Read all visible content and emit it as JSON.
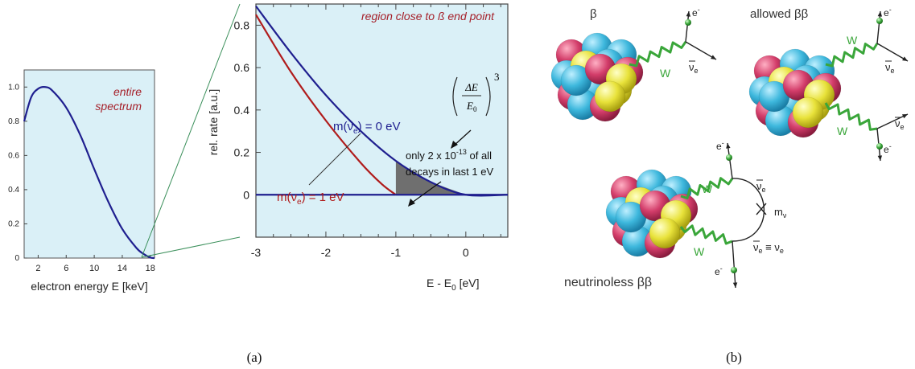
{
  "small_panel": {
    "title_line1": "entire",
    "title_line2": "spectrum",
    "xlabel": "electron energy E [keV]",
    "xticks": [
      "2",
      "6",
      "10",
      "14",
      "18"
    ],
    "yticks": [
      "1.0",
      "0.8",
      "0.6",
      "0.4",
      "0.2",
      "0"
    ]
  },
  "main_panel": {
    "title": "region close to ß end point",
    "ylabel": "rel. rate [a.u.]",
    "xlabel_main": "E - E",
    "xlabel_sub": "0",
    "xlabel_unit": " [eV]",
    "xticks": [
      "-3",
      "-2",
      "-1",
      "0"
    ],
    "yticks": [
      "0.8",
      "0.6",
      "0.4",
      "0.2",
      "0"
    ],
    "label_m0": {
      "pre": "m(ν",
      "sub": "e",
      "post": ") = 0 eV"
    },
    "label_m1": {
      "pre": "m(ν",
      "sub": "e",
      "post": ") = 1 eV"
    },
    "formula_num": "ΔE",
    "formula_den": "E",
    "formula_den_sub": "0",
    "formula_exp": "3",
    "note_line1_pre": "only 2 x 10",
    "note_line1_exp": "-13",
    "note_line1_post": " of all",
    "note_line2": "decays in last 1 eV",
    "colors": {
      "m0": "#1f1f8f",
      "m1": "#b01c1c",
      "panel_bg": "#daf0f7",
      "title": "#a5202a"
    }
  },
  "chart_data": [
    {
      "type": "line",
      "title": "entire spectrum",
      "xlabel": "electron energy E [keV]",
      "ylabel": "",
      "xlim": [
        0,
        18.6
      ],
      "ylim": [
        0,
        1.1
      ],
      "series": [
        {
          "x": [
            0,
            1,
            2,
            3,
            4,
            6,
            8,
            10,
            12,
            14,
            16,
            17,
            18,
            18.6
          ],
          "y": [
            0.8,
            0.94,
            0.99,
            1.0,
            0.98,
            0.88,
            0.72,
            0.52,
            0.33,
            0.17,
            0.06,
            0.025,
            0.003,
            0
          ]
        }
      ]
    },
    {
      "type": "line",
      "title": "region close to ß end point",
      "xlabel": "E - E0 [eV]",
      "ylabel": "rel. rate [a.u.]",
      "xlim": [
        -3,
        0.6
      ],
      "ylim": [
        -0.2,
        0.9
      ],
      "series": [
        {
          "name": "m(νe) = 0 eV",
          "x": [
            -3,
            -2.5,
            -2,
            -1.5,
            -1,
            -0.5,
            0,
            0.6
          ],
          "y": [
            0.89,
            0.67,
            0.47,
            0.3,
            0.16,
            0.06,
            0,
            0
          ]
        },
        {
          "name": "m(νe) = 1 eV",
          "x": [
            -3,
            -2.5,
            -2,
            -1.5,
            -1.2,
            -1
          ],
          "y": [
            0.85,
            0.58,
            0.35,
            0.15,
            0.05,
            0
          ]
        }
      ]
    }
  ],
  "beta_diagram": {
    "beta_title": "β",
    "allowed_title": "allowed ββ",
    "neutrinoless_title": "neutrinoless ββ",
    "w_label": "W",
    "electron_label": "e",
    "electron_sup": "-",
    "nu_label": "ν",
    "nu_sub": "e",
    "nu_equiv": "≡",
    "mass_label": "m",
    "mass_sub": "ν",
    "nucleon_colors": [
      "#3eb8dd",
      "#d33d6a",
      "#e8e23a",
      "#5cc4e6"
    ],
    "w_color": "#3aa63a"
  },
  "captions": {
    "a": "(a)",
    "b": "(b)"
  }
}
